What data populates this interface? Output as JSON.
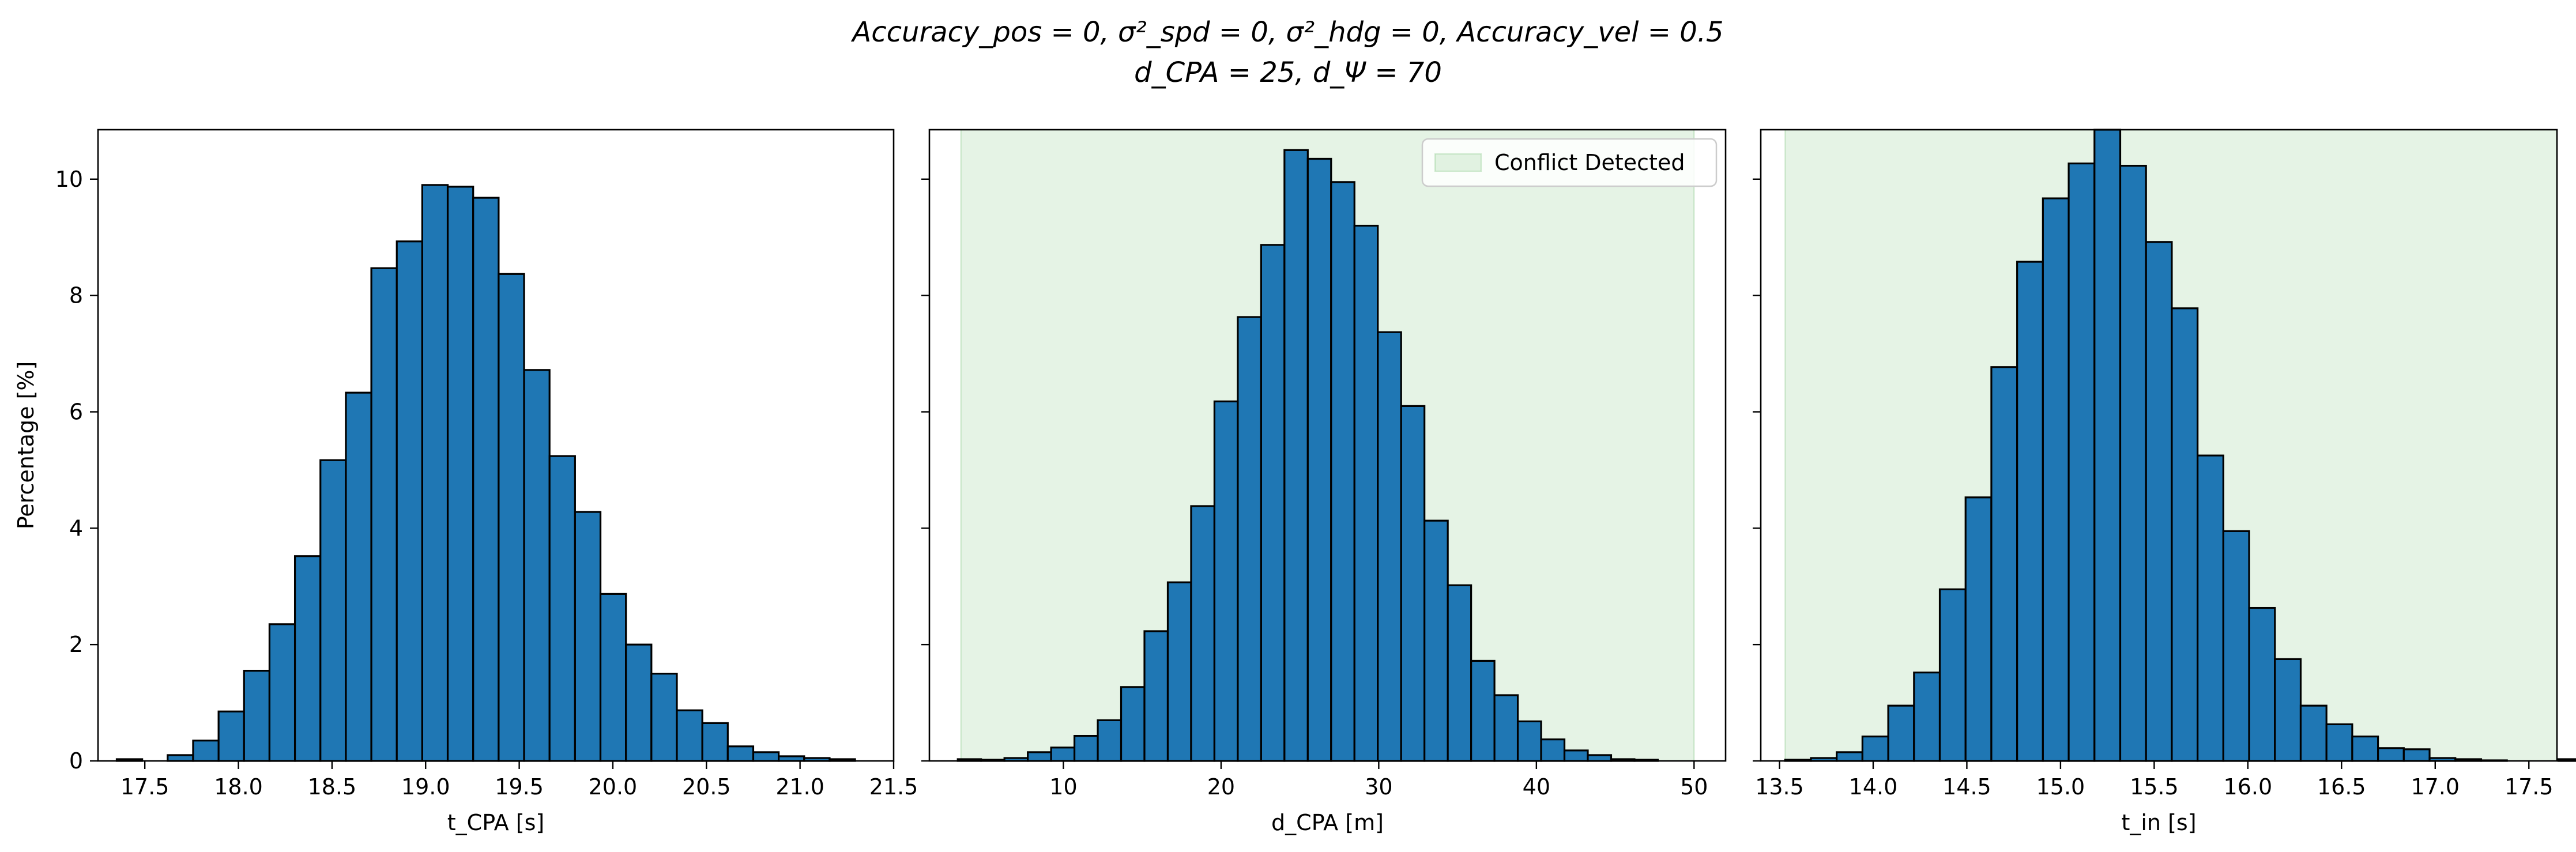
{
  "figure": {
    "title_line1": "Accuracy_pos = 0, σ²_spd = 0, σ²_hdg = 0, Accuracy_vel = 0.5",
    "title_line2": "d_CPA = 25, d_Ψ = 70"
  },
  "colors": {
    "bar_fill": "#1f77b4",
    "bar_edge": "#000000",
    "span_fill": "#2ca02c"
  },
  "chart_data": [
    {
      "type": "bar",
      "title": "",
      "xlabel": "t_CPA [s]",
      "ylabel": "Percentage [%]",
      "xlim": [
        17.25,
        21.5
      ],
      "ylim": [
        0,
        10.85
      ],
      "xticks": [
        "17.5",
        "18.0",
        "18.5",
        "19.0",
        "19.5",
        "20.0",
        "20.5",
        "21.0",
        "21.5"
      ],
      "yticks": [
        "0",
        "2",
        "4",
        "6",
        "8",
        "10"
      ],
      "bin_start": 17.35,
      "bin_width": 0.136,
      "values": [
        0.03,
        0.0,
        0.1,
        0.35,
        0.85,
        1.55,
        2.35,
        3.52,
        5.17,
        6.33,
        8.47,
        8.93,
        9.9,
        9.87,
        9.68,
        8.37,
        6.72,
        5.24,
        4.28,
        2.87,
        2.0,
        1.5,
        0.87,
        0.65,
        0.25,
        0.15,
        0.08,
        0.05,
        0.03
      ],
      "grid": false
    },
    {
      "type": "bar",
      "title": "",
      "xlabel": "d_CPA [m]",
      "ylabel": "",
      "xlim": [
        1.5,
        52.0
      ],
      "ylim": [
        0,
        10.85
      ],
      "xticks": [
        "10",
        "20",
        "30",
        "40",
        "50"
      ],
      "yticks": [],
      "bin_start": 3.3,
      "bin_width": 1.48,
      "values": [
        0.03,
        0.02,
        0.05,
        0.15,
        0.23,
        0.43,
        0.7,
        1.27,
        2.23,
        3.07,
        4.38,
        6.18,
        7.63,
        8.87,
        10.5,
        10.35,
        9.95,
        9.2,
        7.37,
        6.1,
        4.13,
        3.02,
        1.72,
        1.13,
        0.68,
        0.37,
        0.18,
        0.1,
        0.03,
        0.02
      ],
      "span": {
        "from": 3.5,
        "to": 50.0,
        "label": "Conflict Detected"
      },
      "legend": "top-right",
      "grid": false
    },
    {
      "type": "bar",
      "title": "",
      "xlabel": "t_in [s]",
      "ylabel": "",
      "xlim": [
        13.4,
        17.65
      ],
      "ylim": [
        0,
        10.85
      ],
      "xticks": [
        "13.5",
        "14.0",
        "14.5",
        "15.0",
        "15.5",
        "16.0",
        "16.5",
        "17.0",
        "17.5"
      ],
      "yticks": [],
      "bin_start": 13.53,
      "bin_width": 0.1376,
      "values": [
        0.02,
        0.05,
        0.15,
        0.42,
        0.95,
        1.52,
        2.95,
        4.53,
        6.77,
        8.58,
        9.67,
        10.27,
        10.85,
        10.23,
        8.92,
        7.78,
        5.25,
        3.95,
        2.63,
        1.75,
        0.95,
        0.63,
        0.42,
        0.22,
        0.2,
        0.05,
        0.03,
        0.01,
        0.0,
        0.0,
        0.03
      ],
      "span": {
        "from": 13.53,
        "to": 17.65
      },
      "grid": false
    }
  ]
}
